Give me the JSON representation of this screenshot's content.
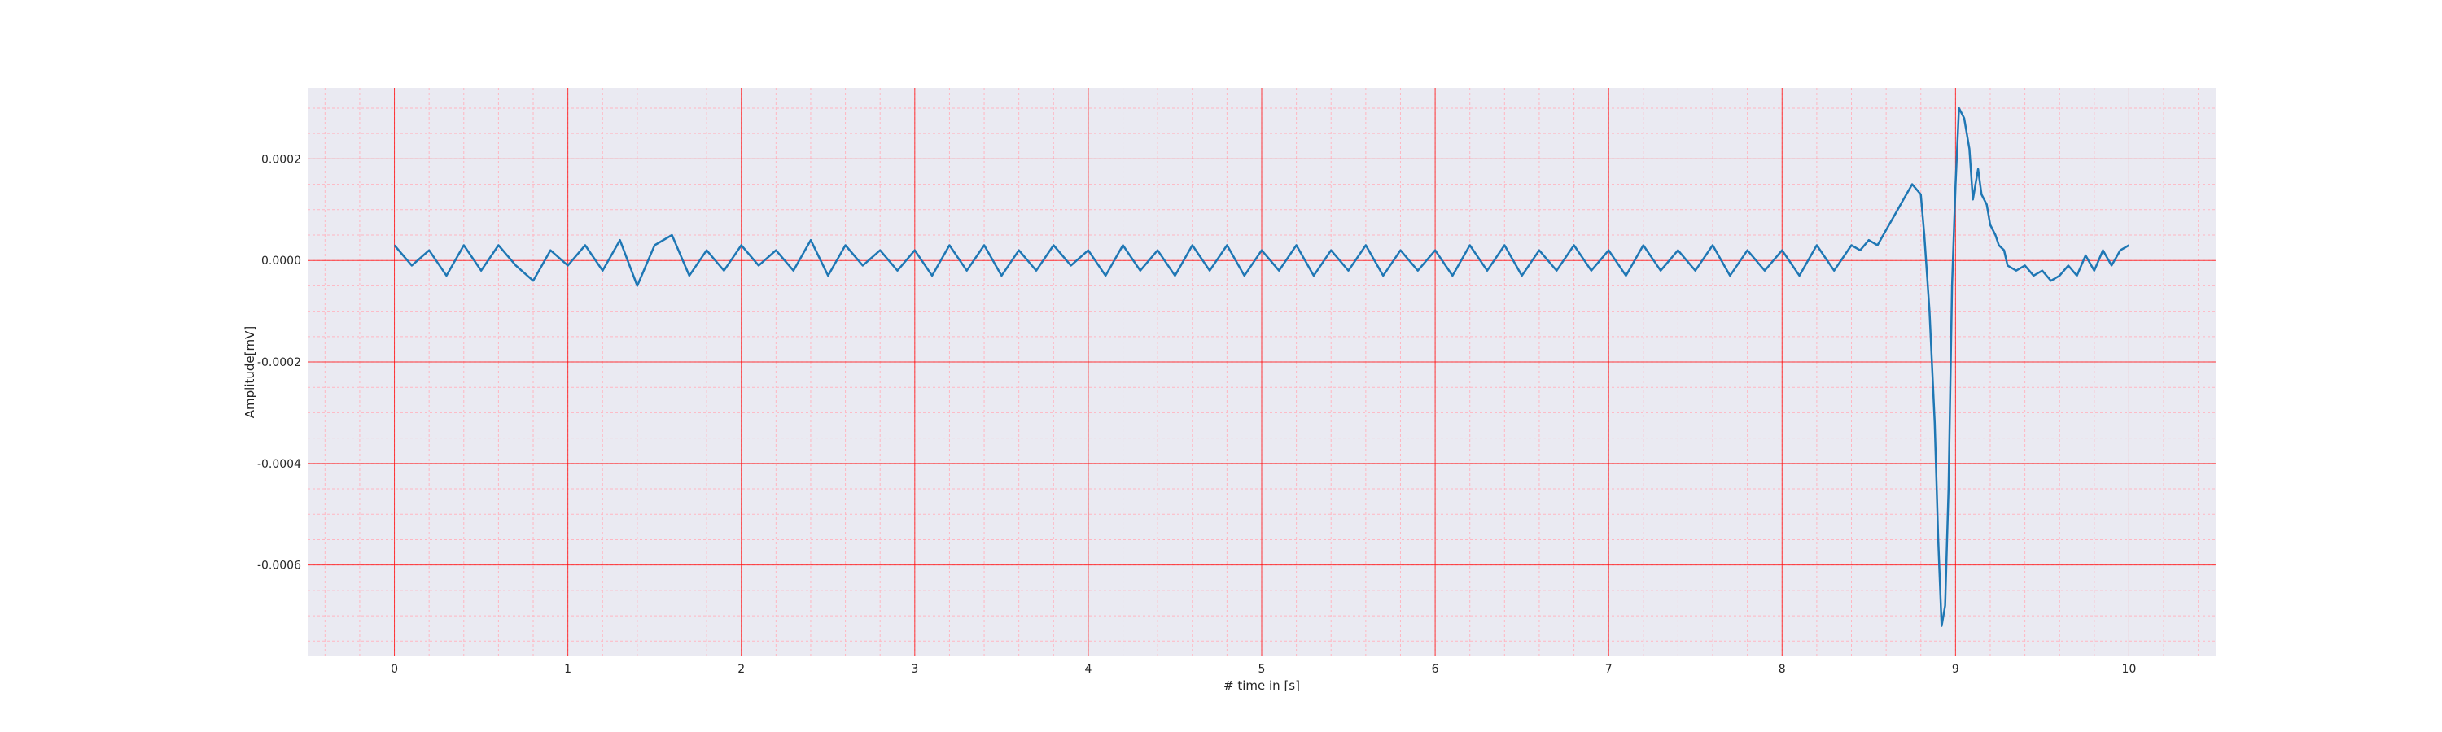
{
  "chart_data": {
    "type": "line",
    "title": "",
    "xlabel": "# time in [s]",
    "ylabel": "Amplitude[mV]",
    "xlim": [
      -0.5,
      10.5
    ],
    "ylim": [
      -0.00078,
      0.00034
    ],
    "xticks": [
      0,
      1,
      2,
      3,
      4,
      5,
      6,
      7,
      8,
      9,
      10
    ],
    "xtick_labels": [
      "0",
      "1",
      "2",
      "3",
      "4",
      "5",
      "6",
      "7",
      "8",
      "9",
      "10"
    ],
    "yticks": [
      0.0002,
      0.0,
      -0.0002,
      -0.0004,
      -0.0006
    ],
    "ytick_labels": [
      "0.0002",
      "0.0000",
      "-0.0002",
      "-0.0004",
      "-0.0006"
    ],
    "grid": true,
    "minor_grid": true,
    "legend": "none",
    "colors": {
      "background": "#eaeaf2",
      "major_grid": "#ff0000",
      "minor_grid": "#ffb6c1",
      "line": "#1f77b4"
    },
    "series": [
      {
        "color": "#1f77b4",
        "x": [
          0,
          0.1,
          0.2,
          0.3,
          0.4,
          0.5,
          0.6,
          0.7,
          0.8,
          0.9,
          1.0,
          1.1,
          1.2,
          1.3,
          1.4,
          1.5,
          1.6,
          1.7,
          1.8,
          1.9,
          2.0,
          2.1,
          2.2,
          2.3,
          2.4,
          2.5,
          2.6,
          2.7,
          2.8,
          2.9,
          3.0,
          3.1,
          3.2,
          3.3,
          3.4,
          3.5,
          3.6,
          3.7,
          3.8,
          3.9,
          4.0,
          4.1,
          4.2,
          4.3,
          4.4,
          4.5,
          4.6,
          4.7,
          4.8,
          4.9,
          5.0,
          5.1,
          5.2,
          5.3,
          5.4,
          5.5,
          5.6,
          5.7,
          5.8,
          5.9,
          6.0,
          6.1,
          6.2,
          6.3,
          6.4,
          6.5,
          6.6,
          6.7,
          6.8,
          6.9,
          7.0,
          7.1,
          7.2,
          7.3,
          7.4,
          7.5,
          7.6,
          7.7,
          7.8,
          7.9,
          8.0,
          8.1,
          8.2,
          8.3,
          8.4,
          8.45,
          8.5,
          8.55,
          8.6,
          8.65,
          8.7,
          8.75,
          8.8,
          8.82,
          8.85,
          8.88,
          8.9,
          8.92,
          8.94,
          8.96,
          8.98,
          9.0,
          9.02,
          9.05,
          9.08,
          9.1,
          9.13,
          9.15,
          9.18,
          9.2,
          9.23,
          9.25,
          9.28,
          9.3,
          9.35,
          9.4,
          9.45,
          9.5,
          9.55,
          9.6,
          9.65,
          9.7,
          9.75,
          9.8,
          9.85,
          9.9,
          9.95,
          10.0
        ],
        "y": [
          3e-05,
          -1e-05,
          2e-05,
          -3e-05,
          3e-05,
          -2e-05,
          3e-05,
          -1e-05,
          -4e-05,
          2e-05,
          -1e-05,
          3e-05,
          -2e-05,
          4e-05,
          -5e-05,
          3e-05,
          5e-05,
          -3e-05,
          2e-05,
          -2e-05,
          3e-05,
          -1e-05,
          2e-05,
          -2e-05,
          4e-05,
          -3e-05,
          3e-05,
          -1e-05,
          2e-05,
          -2e-05,
          2e-05,
          -3e-05,
          3e-05,
          -2e-05,
          3e-05,
          -3e-05,
          2e-05,
          -2e-05,
          3e-05,
          -1e-05,
          2e-05,
          -3e-05,
          3e-05,
          -2e-05,
          2e-05,
          -3e-05,
          3e-05,
          -2e-05,
          3e-05,
          -3e-05,
          2e-05,
          -2e-05,
          3e-05,
          -3e-05,
          2e-05,
          -2e-05,
          3e-05,
          -3e-05,
          2e-05,
          -2e-05,
          2e-05,
          -3e-05,
          3e-05,
          -2e-05,
          3e-05,
          -3e-05,
          2e-05,
          -2e-05,
          3e-05,
          -2e-05,
          2e-05,
          -3e-05,
          3e-05,
          -2e-05,
          2e-05,
          -2e-05,
          3e-05,
          -3e-05,
          2e-05,
          -2e-05,
          2e-05,
          -3e-05,
          3e-05,
          -2e-05,
          3e-05,
          2e-05,
          4e-05,
          3e-05,
          6e-05,
          9e-05,
          0.00012,
          0.00015,
          0.00013,
          5e-05,
          -0.0001,
          -0.00032,
          -0.00055,
          -0.00072,
          -0.00068,
          -0.00045,
          -5e-05,
          0.00015,
          0.0003,
          0.00028,
          0.00022,
          0.00012,
          0.00018,
          0.00013,
          0.00011,
          7e-05,
          5e-05,
          3e-05,
          2e-05,
          -1e-05,
          -2e-05,
          -1e-05,
          -3e-05,
          -2e-05,
          -4e-05,
          -3e-05,
          -1e-05,
          -3e-05,
          1e-05,
          -2e-05,
          2e-05,
          -1e-05,
          2e-05,
          3e-05
        ]
      }
    ]
  }
}
